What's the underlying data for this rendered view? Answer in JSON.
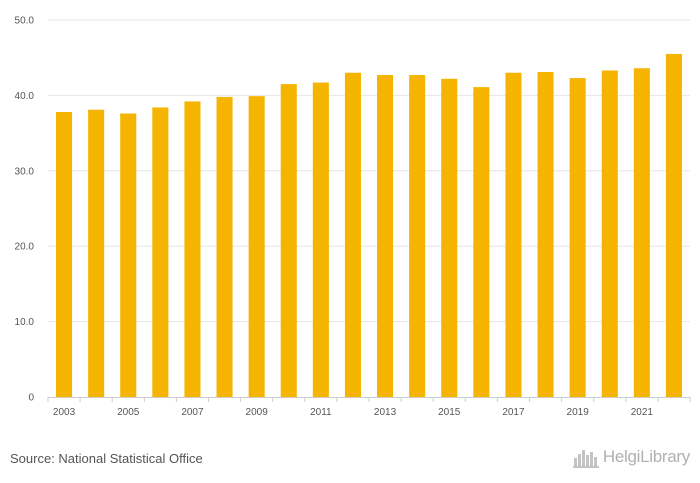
{
  "chart_data": {
    "type": "bar",
    "categories": [
      "2003",
      "2004",
      "2005",
      "2006",
      "2007",
      "2008",
      "2009",
      "2010",
      "2011",
      "2012",
      "2013",
      "2014",
      "2015",
      "2016",
      "2017",
      "2018",
      "2019",
      "2020",
      "2021",
      "2022"
    ],
    "x_tick_labels": [
      "2003",
      "",
      "2005",
      "",
      "2007",
      "",
      "2009",
      "",
      "2011",
      "",
      "2013",
      "",
      "2015",
      "",
      "2017",
      "",
      "2019",
      "",
      "2021",
      ""
    ],
    "values": [
      37.8,
      38.1,
      37.6,
      38.4,
      39.2,
      39.8,
      39.9,
      41.5,
      41.7,
      43.0,
      42.7,
      42.7,
      42.2,
      41.1,
      43.0,
      43.1,
      42.3,
      43.3,
      43.6,
      45.5
    ],
    "ylim": [
      0,
      50
    ],
    "y_ticks": [
      0,
      10,
      20,
      30,
      40,
      50
    ],
    "y_tick_labels": [
      "0",
      "10.0",
      "20.0",
      "30.0",
      "40.0",
      "50.0"
    ],
    "bar_color": "#f5b400",
    "grid": true,
    "title": "",
    "xlabel": "",
    "ylabel": ""
  },
  "footer": {
    "source": "Source: National Statistical Office",
    "logo_text": "HelgiLibrary",
    "logo_icon": "city-skyline-icon"
  }
}
